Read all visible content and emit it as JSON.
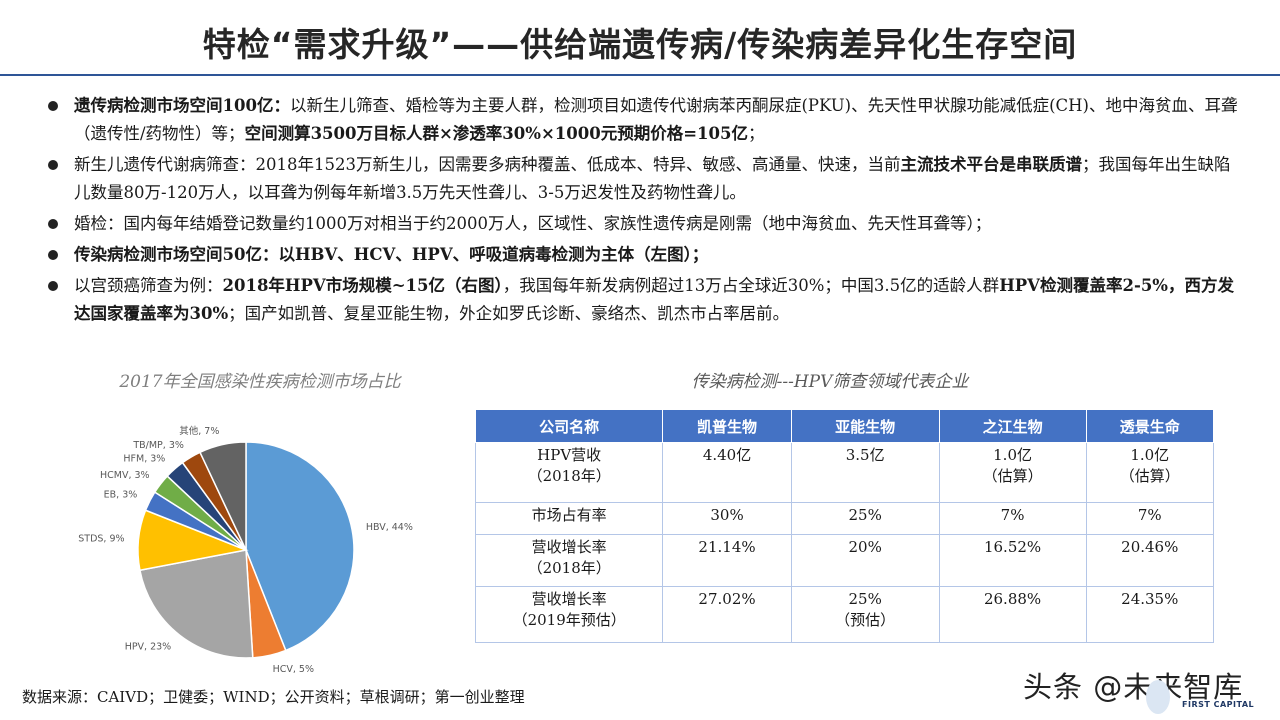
{
  "title": "特检“需求升级”——供给端遗传病/传染病差异化生存空间",
  "bullets": [
    {
      "parts": [
        {
          "text": "遗传病检测市场空间100亿：",
          "bold": true
        },
        {
          "text": "以新生儿筛查、婚检等为主要人群，检测项目如遗传代谢病苯丙酮尿症(PKU)、先天性甲状腺功能减低症(CH)、地中海贫血、耳聋（遗传性/药物性）等；",
          "bold": false
        },
        {
          "text": "空间测算3500万目标人群×渗透率30%×1000元预期价格=105亿",
          "bold": true
        },
        {
          "text": "；",
          "bold": false
        }
      ]
    },
    {
      "parts": [
        {
          "text": "新生儿遗传代谢病筛查：2018年1523万新生儿，因需要多病种覆盖、低成本、特异、敏感、高通量、快速，当前",
          "bold": false
        },
        {
          "text": "主流技术平台是串联质谱",
          "bold": true
        },
        {
          "text": "；我国每年出生缺陷儿数量80万-120万人，以耳聋为例每年新增3.5万先天性聋儿、3-5万迟发性及药物性聋儿。",
          "bold": false
        }
      ]
    },
    {
      "parts": [
        {
          "text": "婚检：国内每年结婚登记数量约1000万对相当于约2000万人，区域性、家族性遗传病是刚需（地中海贫血、先天性耳聋等）；",
          "bold": false
        }
      ]
    },
    {
      "parts": [
        {
          "text": "传染病检测市场空间50亿：以HBV、HCV、HPV、呼吸道病毒检测为主体（左图）；",
          "bold": true
        }
      ]
    },
    {
      "parts": [
        {
          "text": "以宫颈癌筛查为例：",
          "bold": false
        },
        {
          "text": "2018年HPV市场规模~15亿（右图）",
          "bold": true
        },
        {
          "text": "，我国每年新发病例超过13万占全球近30%；中国3.5亿的适龄人群",
          "bold": false
        },
        {
          "text": "HPV检测覆盖率2-5%，西方发达国家覆盖率为30%",
          "bold": true
        },
        {
          "text": "；国产如凯普、复星亚能生物，外企如罗氏诊断、豪络杰、凯杰市占率居前。",
          "bold": false
        }
      ]
    }
  ],
  "pie_title": "2017年全国感染性疾病检测市场占比",
  "chart_data": {
    "type": "pie",
    "title": "2017年全国感染性疾病检测市场占比",
    "slices": [
      {
        "label": "HBV, 44%",
        "name": "HBV",
        "value": 44,
        "color": "#5b9bd5"
      },
      {
        "label": "HCV, 5%",
        "name": "HCV",
        "value": 5,
        "color": "#ed7d31"
      },
      {
        "label": "HPV, 23%",
        "name": "HPV",
        "value": 23,
        "color": "#a5a5a5"
      },
      {
        "label": "STDS, 9%",
        "name": "STDS",
        "value": 9,
        "color": "#ffc000"
      },
      {
        "label": "EB, 3%",
        "name": "EB",
        "value": 3,
        "color": "#4472c4"
      },
      {
        "label": "HCMV, 3%",
        "name": "HCMV",
        "value": 3,
        "color": "#70ad47"
      },
      {
        "label": "HFM, 3%",
        "name": "HFM",
        "value": 3,
        "color": "#264478"
      },
      {
        "label": "TB/MP, 3%",
        "name": "TB/MP",
        "value": 3,
        "color": "#9e480e"
      },
      {
        "label": "其他, 7%",
        "name": "其他",
        "value": 7,
        "color": "#636363"
      }
    ]
  },
  "table": {
    "title": "传染病检测---HPV筛查领域代表企业",
    "headers": [
      "公司名称",
      "凯普生物",
      "亚能生物",
      "之江生物",
      "透景生命"
    ],
    "rows": [
      {
        "label": [
          "HPV营收",
          "（2018年）"
        ],
        "cells": [
          [
            "4.40亿"
          ],
          [
            "3.5亿"
          ],
          [
            "1.0亿",
            "（估算）"
          ],
          [
            "1.0亿",
            "（估算）"
          ]
        ]
      },
      {
        "label": [
          "市场占有率"
        ],
        "cells": [
          [
            "30%"
          ],
          [
            "25%"
          ],
          [
            "7%"
          ],
          [
            "7%"
          ]
        ]
      },
      {
        "label": [
          "营收增长率",
          "（2018年）"
        ],
        "cells": [
          [
            "21.14%"
          ],
          [
            "20%"
          ],
          [
            "16.52%"
          ],
          [
            "20.46%"
          ]
        ]
      },
      {
        "label": [
          "营收增长率",
          "（2019年预估）"
        ],
        "cells": [
          [
            "27.02%"
          ],
          [
            "25%",
            "（预估）"
          ],
          [
            "26.88%"
          ],
          [
            "24.35%"
          ]
        ]
      }
    ]
  },
  "source": "数据来源：CAIVD；卫健委；WIND；公开资料；草根调研；第一创业整理",
  "watermark": "头条 @未来智库",
  "logo_text": "FIRST CAPITAL"
}
